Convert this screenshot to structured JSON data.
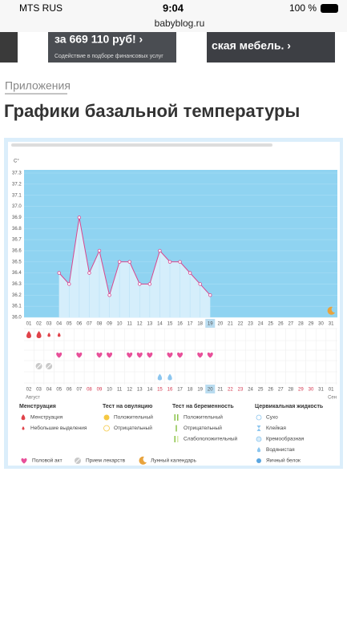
{
  "status_bar": {
    "carrier": "MTS RUS",
    "time": "9:04",
    "battery": "100 %"
  },
  "url": "babyblog.ru",
  "ad": {
    "left_title": "за 669 110 руб! ›",
    "left_sub": "Содействие в подборе финансовых услуг",
    "right_title": "ская мебель. ›"
  },
  "breadcrumb": "Приложения",
  "title": "Графики базальной температуры",
  "chart_data": {
    "type": "line",
    "y_unit": "C°",
    "categories": [
      "01",
      "02",
      "03",
      "04",
      "05",
      "06",
      "07",
      "08",
      "09",
      "10",
      "11",
      "12",
      "13",
      "14",
      "15",
      "16",
      "17",
      "18",
      "19",
      "20",
      "21",
      "22",
      "23",
      "24",
      "25",
      "26",
      "27",
      "28",
      "29",
      "30",
      "31"
    ],
    "values": [
      null,
      null,
      null,
      36.4,
      36.3,
      36.9,
      36.4,
      36.6,
      36.2,
      36.5,
      36.5,
      36.3,
      36.3,
      36.6,
      36.5,
      36.5,
      36.4,
      36.3,
      36.2,
      null,
      null,
      null,
      null,
      null,
      null,
      null,
      null,
      null,
      null,
      null,
      null
    ],
    "color": "#d9478f",
    "ylim": [
      36.0,
      37.3
    ],
    "yticks": [
      {
        "value": 36.0,
        "label": "36.0"
      },
      36.1,
      36.2,
      36.3,
      36.4,
      36.5,
      36.6,
      36.7,
      36.8,
      36.9,
      {
        "value": 37.0,
        "label": "37.0"
      },
      37.1,
      37.2,
      37.3
    ],
    "current_index": 18,
    "dates": [
      "02",
      "03",
      "04",
      "05",
      "06",
      "07",
      "08",
      "09",
      "10",
      "11",
      "12",
      "13",
      "14",
      "15",
      "16",
      "17",
      "18",
      "19",
      "20",
      "21",
      "22",
      "23",
      "24",
      "25",
      "26",
      "27",
      "28",
      "29",
      "30",
      "31",
      "01"
    ],
    "weekend_indices": [
      6,
      7,
      13,
      14,
      20,
      21,
      27,
      28
    ],
    "months": [
      {
        "label": "Август",
        "index": 0
      },
      {
        "label": "Сен",
        "index": 30
      }
    ],
    "markers": {
      "menstruation": [
        0,
        1
      ],
      "spotting": [
        2,
        3
      ],
      "intercourse": [
        3,
        5,
        7,
        8,
        10,
        11,
        12,
        14,
        15,
        17,
        18
      ],
      "medication": [
        1,
        2
      ],
      "watery": [
        13,
        14
      ],
      "moon": [
        30
      ]
    }
  },
  "legend": {
    "groups": [
      {
        "title": "Менструация",
        "items": [
          "Менструация",
          "Небольшие выделения"
        ]
      },
      {
        "title": "Тест на овуляцию",
        "items": [
          "Положительный",
          "Отрицательный"
        ]
      },
      {
        "title": "Тест на беременность",
        "items": [
          "Положительный",
          "Отрицательный",
          "Слабоположительный"
        ]
      },
      {
        "title": "Цервикальная жидкость",
        "items": [
          "Сухо",
          "Клейкая",
          "Кремообразная",
          "Водянистая",
          "Яичный белок"
        ]
      }
    ],
    "bottom": [
      "Половой акт",
      "Прием лекарств",
      "Лунный календарь"
    ]
  }
}
